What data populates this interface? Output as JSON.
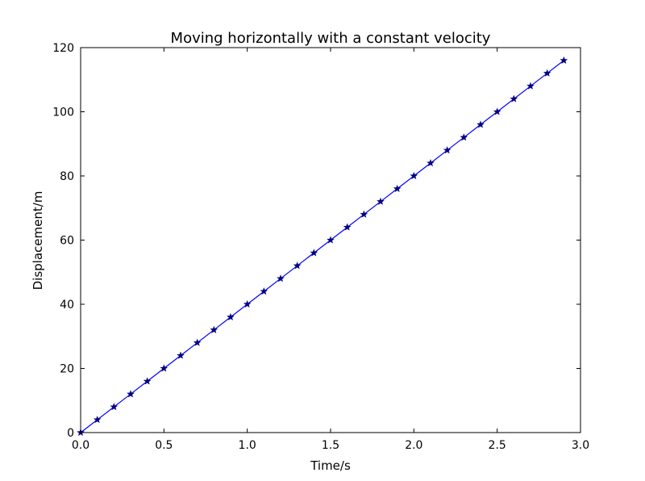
{
  "chart_data": {
    "type": "line",
    "title": "Moving horizontally with a constant velocity",
    "xlabel": "Time/s",
    "ylabel": "Displacement/m",
    "xlim": [
      0.0,
      3.0
    ],
    "ylim": [
      0,
      120
    ],
    "xticks": [
      "0.0",
      "0.5",
      "1.0",
      "1.5",
      "2.0",
      "2.5",
      "3.0"
    ],
    "yticks": [
      "0",
      "20",
      "40",
      "60",
      "80",
      "100",
      "120"
    ],
    "grid": false,
    "line_color": "#0000ff",
    "marker_color": "#000080",
    "marker": "star",
    "series": [
      {
        "x": [
          0.0,
          0.1,
          0.2,
          0.3,
          0.4,
          0.5,
          0.6,
          0.7,
          0.8,
          0.9,
          1.0,
          1.1,
          1.2,
          1.3,
          1.4,
          1.5,
          1.6,
          1.7,
          1.8,
          1.9,
          2.0,
          2.1,
          2.2,
          2.3,
          2.4,
          2.5,
          2.6,
          2.7,
          2.8,
          2.9
        ],
        "y": [
          0,
          4,
          8,
          12,
          16,
          20,
          24,
          28,
          32,
          36,
          40,
          44,
          48,
          52,
          56,
          60,
          64,
          68,
          72,
          76,
          80,
          84,
          88,
          92,
          96,
          100,
          104,
          108,
          112,
          116
        ]
      }
    ]
  }
}
